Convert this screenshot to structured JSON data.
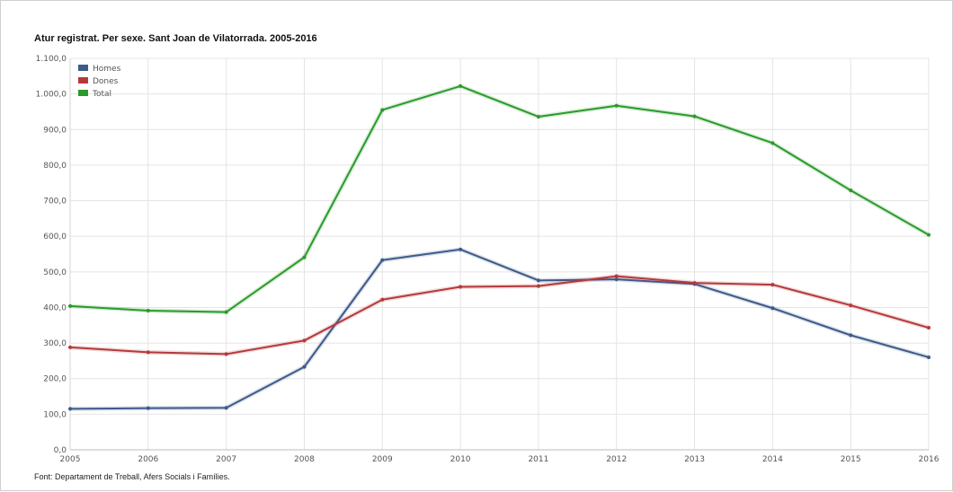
{
  "page": {
    "title": "Atur registrat. Per sexe. Sant Joan de Vilatorrada. 2005-2016",
    "source": "Font: Departament de Treball, Afers Socials i Famílies."
  },
  "chart_data": {
    "type": "line",
    "title": "Atur registrat. Per sexe. Sant Joan de Vilatorrada. 2005-2016",
    "xlabel": "",
    "ylabel": "",
    "x": [
      "2005",
      "2006",
      "2007",
      "2008",
      "2009",
      "2010",
      "2011",
      "2012",
      "2013",
      "2014",
      "2015",
      "2016"
    ],
    "ylim": [
      0,
      1100
    ],
    "yticks": [
      0,
      100,
      200,
      300,
      400,
      500,
      600,
      700,
      800,
      900,
      1000,
      1100
    ],
    "ytick_labels": [
      "0,0",
      "100,0",
      "200,0",
      "300,0",
      "400,0",
      "500,0",
      "600,0",
      "700,0",
      "800,0",
      "900,0",
      "1.000,0",
      "1.100,0"
    ],
    "grid": true,
    "legend_position": "top-left",
    "series": [
      {
        "name": "Homes",
        "color": "#3d5a8a",
        "values": [
          115,
          117,
          118,
          233,
          533,
          563,
          476,
          479,
          466,
          398,
          322,
          260
        ]
      },
      {
        "name": "Dones",
        "color": "#b5393a",
        "values": [
          288,
          274,
          269,
          307,
          422,
          458,
          460,
          488,
          469,
          464,
          406,
          343
        ]
      },
      {
        "name": "Total",
        "color": "#2a9a2a",
        "values": [
          404,
          391,
          387,
          541,
          955,
          1022,
          936,
          967,
          937,
          862,
          729,
          604
        ]
      }
    ]
  }
}
